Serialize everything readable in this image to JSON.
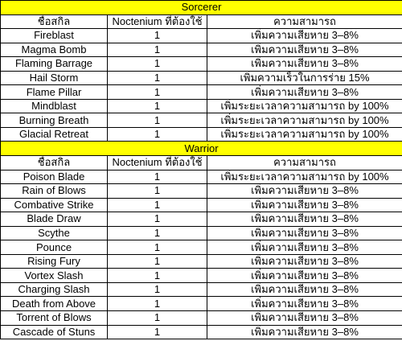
{
  "sections": [
    {
      "title": "Sorcerer",
      "headers": [
        "ชื่อสกิล",
        "Noctenium ที่ต้องใช้",
        "ความสามารถ"
      ],
      "rows": [
        [
          "Fireblast",
          "1",
          "เพิ่มความเสียหาย 3–8%"
        ],
        [
          "Magma Bomb",
          "1",
          "เพิ่มความเสียหาย 3–8%"
        ],
        [
          "Flaming Barrage",
          "1",
          "เพิ่มความเสียหาย 3–8%"
        ],
        [
          "Hail Storm",
          "1",
          "เพิ่มความเร็วในการร่าย 15%"
        ],
        [
          "Flame Pillar",
          "1",
          "เพิ่มความเสียหาย 3–8%"
        ],
        [
          "Mindblast",
          "1",
          "เพิ่มระยะเวลาความสามารถ by 100%"
        ],
        [
          "Burning Breath",
          "1",
          "เพิ่มระยะเวลาความสามารถ by 100%"
        ],
        [
          "Glacial Retreat",
          "1",
          "เพิ่มระยะเวลาความสามารถ by 100%"
        ]
      ]
    },
    {
      "title": "Warrior",
      "headers": [
        "ชื่อสกิล",
        "Noctenium ที่ต้องใช้",
        "ความสามารถ"
      ],
      "rows": [
        [
          "Poison Blade",
          "1",
          "เพิ่มระยะเวลาความสามารถ by 100%"
        ],
        [
          "Rain of Blows",
          "1",
          "เพิ่มความเสียหาย 3–8%"
        ],
        [
          "Combative Strike",
          "1",
          "เพิ่มความเสียหาย 3–8%"
        ],
        [
          "Blade Draw",
          "1",
          "เพิ่มความเสียหาย 3–8%"
        ],
        [
          "Scythe",
          "1",
          "เพิ่มความเสียหาย 3–8%"
        ],
        [
          "Pounce",
          "1",
          "เพิ่มความเสียหาย 3–8%"
        ],
        [
          "Rising Fury",
          "1",
          "เพิ่มความเสียหาย 3–8%"
        ],
        [
          "Vortex Slash",
          "1",
          "เพิ่มความเสียหาย 3–8%"
        ],
        [
          "Charging Slash",
          "1",
          "เพิ่มความเสียหาย 3–8%"
        ],
        [
          "Death from Above",
          "1",
          "เพิ่มความเสียหาย 3–8%"
        ],
        [
          "Torrent of Blows",
          "1",
          "เพิ่มความเสียหาย 3–8%"
        ],
        [
          "Cascade of Stuns",
          "1",
          "เพิ่มความเสียหาย 3–8%"
        ]
      ]
    }
  ],
  "colors": {
    "section_fill": "#ffff00",
    "grid": "#000000"
  }
}
